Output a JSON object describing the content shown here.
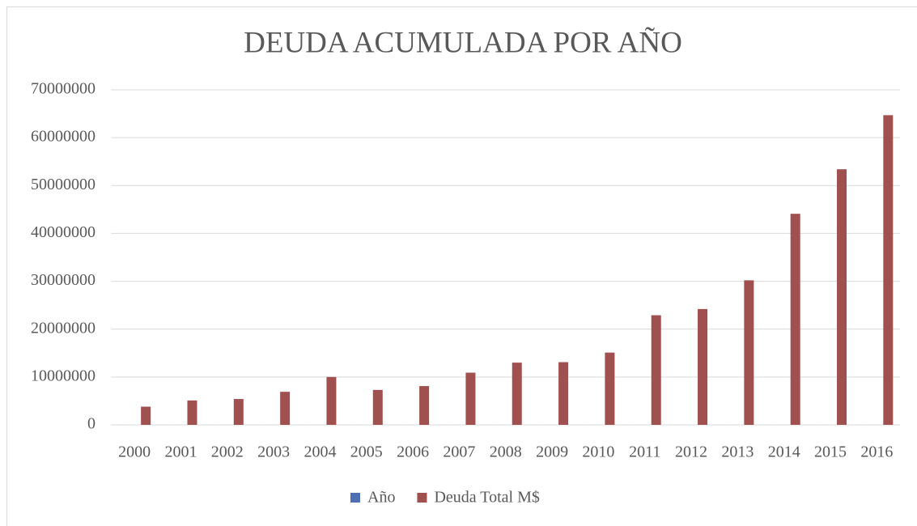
{
  "chart_data": {
    "type": "bar",
    "title": "DEUDA ACUMULADA POR AÑO",
    "categories": [
      "2000",
      "2001",
      "2002",
      "2003",
      "2004",
      "2005",
      "2006",
      "2007",
      "2008",
      "2009",
      "2010",
      "2011",
      "2012",
      "2013",
      "2014",
      "2015",
      "2016"
    ],
    "series": [
      {
        "name": "Año",
        "color": "#4f6fb5",
        "values": [
          2000,
          2001,
          2002,
          2003,
          2004,
          2005,
          2006,
          2007,
          2008,
          2009,
          2010,
          2011,
          2012,
          2013,
          2014,
          2015,
          2016
        ]
      },
      {
        "name": "Deuda Total M$",
        "color": "#a0504f",
        "values": [
          3800000,
          5100000,
          5400000,
          6900000,
          10000000,
          7300000,
          8100000,
          10900000,
          13000000,
          13100000,
          15100000,
          22900000,
          24200000,
          30200000,
          44100000,
          53400000,
          64700000
        ]
      }
    ],
    "ylim": [
      0,
      70000000
    ],
    "yticks": [
      0,
      10000000,
      20000000,
      30000000,
      40000000,
      50000000,
      60000000,
      70000000
    ],
    "grid": true,
    "legend": "bottom"
  }
}
